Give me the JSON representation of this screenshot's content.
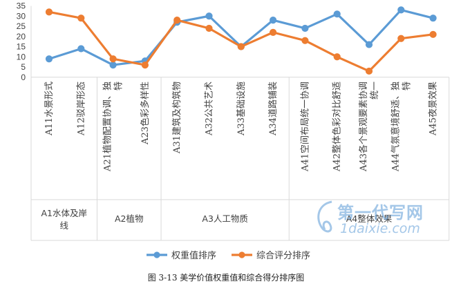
{
  "chart_data": {
    "type": "line",
    "categories": [
      "A11水景形式",
      "A12驳岸形态",
      "A21植物配置协调、独特",
      "A23色彩多样性",
      "A31建筑及构筑物",
      "A32公共艺术",
      "A33基础设施",
      "A34道路铺装",
      "A41空间布局统一协调",
      "A42整体色彩对比舒适",
      "A43各个景观要素协调统一",
      "A44气氛意境舒适、独特",
      "A45夜景效果"
    ],
    "groups": [
      {
        "label": "A1水体及岸线",
        "count": 2
      },
      {
        "label": "A2植物",
        "count": 2
      },
      {
        "label": "A3人工物质",
        "count": 4
      },
      {
        "label": "A4整体效果",
        "count": 5
      }
    ],
    "series": [
      {
        "name": "权重值排序",
        "color": "#5B9BD5",
        "values": [
          9,
          14,
          6,
          8,
          27,
          30,
          15,
          28,
          24,
          31,
          16,
          33,
          29
        ]
      },
      {
        "name": "综合评分排序",
        "color": "#ED7D31",
        "values": [
          32,
          29,
          9,
          6,
          28,
          24,
          15,
          22,
          18,
          10,
          3,
          19,
          21
        ]
      }
    ],
    "ylim": [
      0,
      35
    ],
    "yticks": [
      0,
      5,
      10,
      15,
      20,
      25,
      30,
      35
    ],
    "legend_position": "bottom",
    "grid": false
  },
  "caption": "图 3-13 美学价值权重值和综合得分排序图",
  "watermark": {
    "line1": "第一代写网",
    "line2": "1daixie.com"
  }
}
